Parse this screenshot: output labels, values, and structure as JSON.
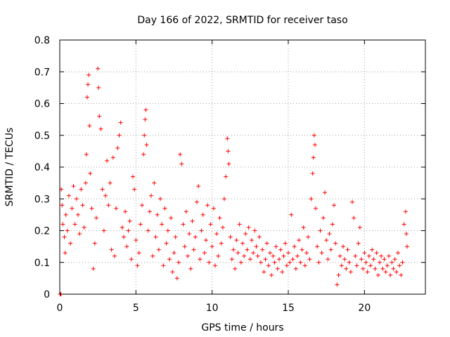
{
  "chart_data": {
    "type": "scatter",
    "title": "Day 166 of 2022, SRMTID for receiver taso",
    "xlabel": "GPS time / hours",
    "ylabel": "SRMTID / TECUs",
    "xlim": [
      0,
      24
    ],
    "ylim": [
      0,
      0.8
    ],
    "xticks": [
      0,
      5,
      10,
      15,
      20
    ],
    "yticks": [
      0,
      0.1,
      0.2,
      0.3,
      0.4,
      0.5,
      0.6,
      0.7,
      0.8
    ],
    "xtick_labels": [
      "0",
      "5",
      "10",
      "15",
      "20"
    ],
    "ytick_labels": [
      "0",
      "0.1",
      "0.2",
      "0.3",
      "0.4",
      "0.5",
      "0.6",
      "0.7",
      "0.8"
    ],
    "grid": true,
    "marker": "+",
    "color": "#ff0000",
    "series": [
      {
        "name": "SRMTID",
        "points": [
          [
            0.02,
            0.0
          ],
          [
            0.05,
            0.0
          ],
          [
            0.08,
            0.0
          ],
          [
            0.1,
            0.33
          ],
          [
            0.15,
            0.28
          ],
          [
            0.2,
            0.22
          ],
          [
            0.3,
            0.18
          ],
          [
            0.35,
            0.13
          ],
          [
            0.4,
            0.25
          ],
          [
            0.5,
            0.2
          ],
          [
            0.6,
            0.31
          ],
          [
            0.7,
            0.16
          ],
          [
            0.8,
            0.27
          ],
          [
            0.9,
            0.34
          ],
          [
            1.0,
            0.22
          ],
          [
            1.1,
            0.3
          ],
          [
            1.2,
            0.25
          ],
          [
            1.3,
            0.19
          ],
          [
            1.4,
            0.33
          ],
          [
            1.5,
            0.28
          ],
          [
            1.6,
            0.21
          ],
          [
            1.7,
            0.35
          ],
          [
            1.75,
            0.44
          ],
          [
            1.8,
            0.62
          ],
          [
            1.85,
            0.66
          ],
          [
            1.9,
            0.69
          ],
          [
            1.95,
            0.53
          ],
          [
            2.0,
            0.38
          ],
          [
            2.1,
            0.27
          ],
          [
            2.2,
            0.08
          ],
          [
            2.3,
            0.16
          ],
          [
            2.4,
            0.24
          ],
          [
            2.5,
            0.71
          ],
          [
            2.55,
            0.65
          ],
          [
            2.6,
            0.56
          ],
          [
            2.7,
            0.52
          ],
          [
            2.8,
            0.33
          ],
          [
            2.9,
            0.2
          ],
          [
            3.0,
            0.31
          ],
          [
            3.1,
            0.42
          ],
          [
            3.2,
            0.28
          ],
          [
            3.3,
            0.35
          ],
          [
            3.4,
            0.14
          ],
          [
            3.5,
            0.43
          ],
          [
            3.6,
            0.12
          ],
          [
            3.7,
            0.27
          ],
          [
            3.8,
            0.46
          ],
          [
            3.9,
            0.5
          ],
          [
            4.0,
            0.54
          ],
          [
            4.1,
            0.21
          ],
          [
            4.2,
            0.18
          ],
          [
            4.3,
            0.26
          ],
          [
            4.4,
            0.15
          ],
          [
            4.5,
            0.2
          ],
          [
            4.6,
            0.23
          ],
          [
            4.7,
            0.11
          ],
          [
            4.8,
            0.37
          ],
          [
            4.9,
            0.33
          ],
          [
            5.0,
            0.17
          ],
          [
            5.1,
            0.09
          ],
          [
            5.2,
            0.13
          ],
          [
            5.3,
            0.22
          ],
          [
            5.4,
            0.28
          ],
          [
            5.5,
            0.44
          ],
          [
            5.55,
            0.5
          ],
          [
            5.6,
            0.55
          ],
          [
            5.65,
            0.58
          ],
          [
            5.7,
            0.47
          ],
          [
            5.8,
            0.2
          ],
          [
            5.9,
            0.26
          ],
          [
            6.0,
            0.31
          ],
          [
            6.1,
            0.12
          ],
          [
            6.2,
            0.35
          ],
          [
            6.3,
            0.18
          ],
          [
            6.4,
            0.25
          ],
          [
            6.5,
            0.14
          ],
          [
            6.6,
            0.3
          ],
          [
            6.7,
            0.22
          ],
          [
            6.8,
            0.09
          ],
          [
            6.9,
            0.27
          ],
          [
            7.0,
            0.16
          ],
          [
            7.1,
            0.2
          ],
          [
            7.2,
            0.11
          ],
          [
            7.3,
            0.24
          ],
          [
            7.4,
            0.07
          ],
          [
            7.5,
            0.13
          ],
          [
            7.6,
            0.18
          ],
          [
            7.7,
            0.05
          ],
          [
            7.8,
            0.1
          ],
          [
            7.9,
            0.44
          ],
          [
            8.0,
            0.41
          ],
          [
            8.1,
            0.22
          ],
          [
            8.2,
            0.15
          ],
          [
            8.3,
            0.26
          ],
          [
            8.4,
            0.12
          ],
          [
            8.5,
            0.19
          ],
          [
            8.6,
            0.08
          ],
          [
            8.7,
            0.23
          ],
          [
            8.8,
            0.14
          ],
          [
            8.9,
            0.18
          ],
          [
            9.0,
            0.29
          ],
          [
            9.1,
            0.34
          ],
          [
            9.2,
            0.11
          ],
          [
            9.3,
            0.2
          ],
          [
            9.4,
            0.25
          ],
          [
            9.5,
            0.13
          ],
          [
            9.6,
            0.17
          ],
          [
            9.7,
            0.28
          ],
          [
            9.8,
            0.1
          ],
          [
            9.9,
            0.22
          ],
          [
            10.0,
            0.15
          ],
          [
            10.1,
            0.27
          ],
          [
            10.2,
            0.09
          ],
          [
            10.3,
            0.19
          ],
          [
            10.4,
            0.12
          ],
          [
            10.5,
            0.24
          ],
          [
            10.6,
            0.16
          ],
          [
            10.7,
            0.21
          ],
          [
            10.8,
            0.3
          ],
          [
            10.9,
            0.37
          ],
          [
            11.0,
            0.49
          ],
          [
            11.05,
            0.45
          ],
          [
            11.1,
            0.41
          ],
          [
            11.2,
            0.18
          ],
          [
            11.3,
            0.11
          ],
          [
            11.4,
            0.14
          ],
          [
            11.5,
            0.08
          ],
          [
            11.6,
            0.17
          ],
          [
            11.7,
            0.13
          ],
          [
            11.8,
            0.22
          ],
          [
            11.9,
            0.1
          ],
          [
            12.0,
            0.16
          ],
          [
            12.1,
            0.12
          ],
          [
            12.2,
            0.19
          ],
          [
            12.3,
            0.14
          ],
          [
            12.4,
            0.21
          ],
          [
            12.5,
            0.11
          ],
          [
            12.6,
            0.17
          ],
          [
            12.7,
            0.13
          ],
          [
            12.8,
            0.2
          ],
          [
            12.9,
            0.15
          ],
          [
            13.0,
            0.12
          ],
          [
            13.1,
            0.18
          ],
          [
            13.2,
            0.1
          ],
          [
            13.3,
            0.14
          ],
          [
            13.4,
            0.07
          ],
          [
            13.5,
            0.11
          ],
          [
            13.6,
            0.16
          ],
          [
            13.7,
            0.09
          ],
          [
            13.8,
            0.13
          ],
          [
            13.9,
            0.06
          ],
          [
            14.0,
            0.12
          ],
          [
            14.1,
            0.1
          ],
          [
            14.2,
            0.15
          ],
          [
            14.3,
            0.08
          ],
          [
            14.4,
            0.11
          ],
          [
            14.5,
            0.14
          ],
          [
            14.6,
            0.07
          ],
          [
            14.7,
            0.12
          ],
          [
            14.8,
            0.16
          ],
          [
            14.9,
            0.09
          ],
          [
            15.0,
            0.13
          ],
          [
            15.1,
            0.1
          ],
          [
            15.2,
            0.25
          ],
          [
            15.3,
            0.11
          ],
          [
            15.4,
            0.15
          ],
          [
            15.5,
            0.08
          ],
          [
            15.6,
            0.12
          ],
          [
            15.7,
            0.17
          ],
          [
            15.8,
            0.1
          ],
          [
            15.9,
            0.14
          ],
          [
            16.0,
            0.21
          ],
          [
            16.1,
            0.09
          ],
          [
            16.2,
            0.13
          ],
          [
            16.3,
            0.18
          ],
          [
            16.4,
            0.11
          ],
          [
            16.5,
            0.3
          ],
          [
            16.6,
            0.38
          ],
          [
            16.65,
            0.43
          ],
          [
            16.7,
            0.5
          ],
          [
            16.75,
            0.47
          ],
          [
            16.8,
            0.27
          ],
          [
            16.9,
            0.15
          ],
          [
            17.0,
            0.1
          ],
          [
            17.1,
            0.2
          ],
          [
            17.2,
            0.13
          ],
          [
            17.3,
            0.24
          ],
          [
            17.4,
            0.32
          ],
          [
            17.5,
            0.17
          ],
          [
            17.6,
            0.11
          ],
          [
            17.7,
            0.19
          ],
          [
            17.8,
            0.14
          ],
          [
            17.9,
            0.22
          ],
          [
            18.0,
            0.28
          ],
          [
            18.1,
            0.16
          ],
          [
            18.2,
            0.03
          ],
          [
            18.3,
            0.06
          ],
          [
            18.4,
            0.12
          ],
          [
            18.5,
            0.09
          ],
          [
            18.6,
            0.15
          ],
          [
            18.7,
            0.11
          ],
          [
            18.8,
            0.08
          ],
          [
            18.9,
            0.14
          ],
          [
            19.0,
            0.1
          ],
          [
            19.1,
            0.07
          ],
          [
            19.2,
            0.29
          ],
          [
            19.3,
            0.24
          ],
          [
            19.4,
            0.12
          ],
          [
            19.5,
            0.09
          ],
          [
            19.6,
            0.16
          ],
          [
            19.7,
            0.21
          ],
          [
            19.8,
            0.11
          ],
          [
            19.9,
            0.08
          ],
          [
            20.0,
            0.13
          ],
          [
            20.1,
            0.1
          ],
          [
            20.2,
            0.07
          ],
          [
            20.3,
            0.12
          ],
          [
            20.4,
            0.09
          ],
          [
            20.5,
            0.14
          ],
          [
            20.6,
            0.11
          ],
          [
            20.7,
            0.08
          ],
          [
            20.8,
            0.13
          ],
          [
            20.9,
            0.06
          ],
          [
            21.0,
            0.1
          ],
          [
            21.1,
            0.12
          ],
          [
            21.2,
            0.08
          ],
          [
            21.3,
            0.11
          ],
          [
            21.4,
            0.07
          ],
          [
            21.5,
            0.09
          ],
          [
            21.6,
            0.12
          ],
          [
            21.7,
            0.06
          ],
          [
            21.8,
            0.1
          ],
          [
            21.9,
            0.08
          ],
          [
            22.0,
            0.11
          ],
          [
            22.1,
            0.07
          ],
          [
            22.2,
            0.13
          ],
          [
            22.3,
            0.09
          ],
          [
            22.4,
            0.06
          ],
          [
            22.5,
            0.1
          ],
          [
            22.6,
            0.22
          ],
          [
            22.7,
            0.26
          ],
          [
            22.75,
            0.19
          ],
          [
            22.8,
            0.15
          ]
        ]
      }
    ]
  }
}
